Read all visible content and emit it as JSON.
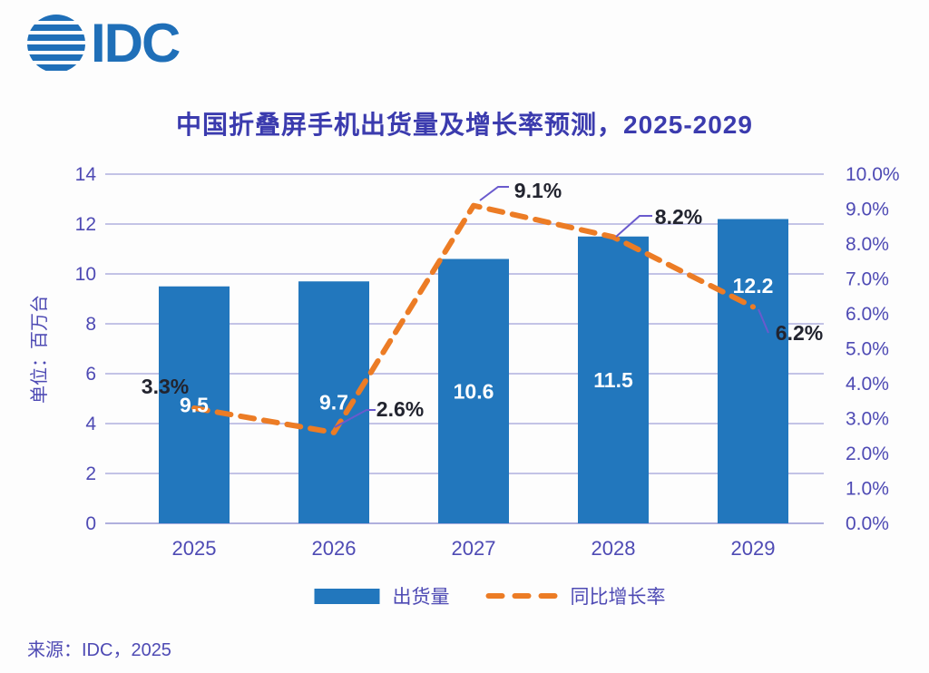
{
  "logo": {
    "text": "IDC"
  },
  "title": {
    "text": "中国折叠屏手机出货量及增长率预测，2025-2029"
  },
  "source": {
    "text": "来源：IDC，2025"
  },
  "legend": {
    "items": [
      {
        "label": "出货量",
        "swatch": "bar"
      },
      {
        "label": "同比增长率",
        "swatch": "dashed-line"
      }
    ]
  },
  "colors": {
    "bar": "#2277BD",
    "line": "#EC7C25",
    "grid": "#B0B0DE",
    "axis_text": "#4E4AB4",
    "title_text": "#3B3BAE",
    "data_label_dark": "#22242F",
    "bar_label_white": "#FFFFFF",
    "callout": "#6A5ACD",
    "logo_blue": "#1F6FB8"
  },
  "chart_data": {
    "type": "bar",
    "subtype": "combo bar + dashed line, dual axis",
    "title": "中国折叠屏手机出货量及增长率预测，2025-2029",
    "categories": [
      "2025",
      "2026",
      "2027",
      "2028",
      "2029"
    ],
    "series": [
      {
        "name": "出货量",
        "type": "bar",
        "axis": "left",
        "values": [
          9.5,
          9.7,
          10.6,
          11.5,
          12.2
        ],
        "labels": [
          "9.5",
          "9.7",
          "10.6",
          "11.5",
          "12.2"
        ]
      },
      {
        "name": "同比增长率",
        "type": "line",
        "dashed": true,
        "axis": "right",
        "values": [
          3.3,
          2.6,
          9.1,
          8.2,
          6.2
        ],
        "labels": [
          "3.3%",
          "2.6%",
          "9.1%",
          "8.2%",
          "6.2%"
        ]
      }
    ],
    "left_axis": {
      "title": "单位：百万台",
      "min": 0,
      "max": 14,
      "step": 2,
      "ticks": [
        "0",
        "2",
        "4",
        "6",
        "8",
        "10",
        "12",
        "14"
      ]
    },
    "right_axis": {
      "min": 0,
      "max": 10,
      "step": 1,
      "ticks": [
        "0.0%",
        "1.0%",
        "2.0%",
        "3.0%",
        "4.0%",
        "5.0%",
        "6.0%",
        "7.0%",
        "8.0%",
        "9.0%",
        "10.0%"
      ]
    },
    "grid": true,
    "legend_position": "bottom"
  }
}
